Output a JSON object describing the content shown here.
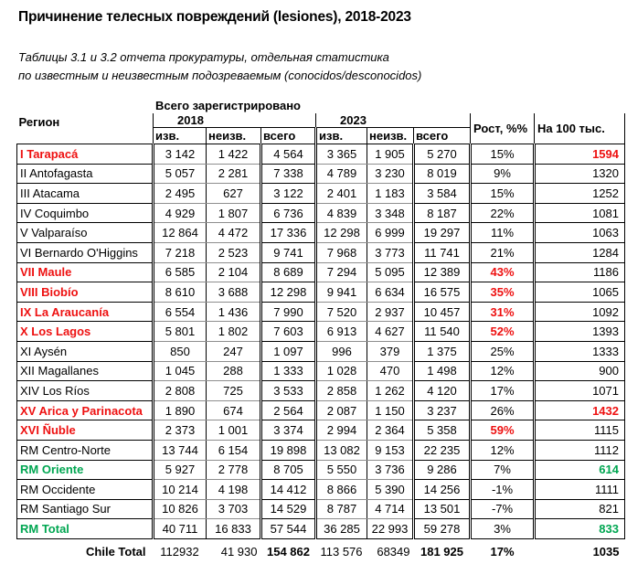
{
  "title": "Причинение телесных повреждений (lesiones), 2018-2023",
  "subtitle": {
    "line1": "Таблицы 3.1 и 3.2 отчета прокуратуры, отдельная статистика",
    "line2": "по известным и неизвестным подозреваемым (conocidos/desconocidos)"
  },
  "colors": {
    "red": "#ee1111",
    "green": "#00a651"
  },
  "table": {
    "super_header": "Всего зарегистрировано",
    "col_region": "Регион",
    "year1": "2018",
    "year2": "2023",
    "sub_izv": "изв.",
    "sub_neizv": "неизв.",
    "sub_vsego": "всего",
    "col_growth": "Рост, %%",
    "col_per100k": "На 100 тыс.",
    "rows": [
      {
        "region": "I Tarapacá",
        "color": "red",
        "values": [
          "3 142",
          "1 422",
          "4 564",
          "3 365",
          "1 905",
          "5 270"
        ],
        "growth": "15%",
        "growth_color": "default",
        "per100k": "1594",
        "per100k_color": "red"
      },
      {
        "region": "II Antofagasta",
        "color": "default",
        "values": [
          "5 057",
          "2 281",
          "7 338",
          "4 789",
          "3 230",
          "8 019"
        ],
        "growth": "9%",
        "growth_color": "default",
        "per100k": "1320",
        "per100k_color": "default"
      },
      {
        "region": "III Atacama",
        "color": "default",
        "values": [
          "2 495",
          "627",
          "3 122",
          "2 401",
          "1 183",
          "3 584"
        ],
        "growth": "15%",
        "growth_color": "default",
        "per100k": "1252",
        "per100k_color": "default"
      },
      {
        "region": "IV Coquimbo",
        "color": "default",
        "values": [
          "4 929",
          "1 807",
          "6 736",
          "4 839",
          "3 348",
          "8 187"
        ],
        "growth": "22%",
        "growth_color": "default",
        "per100k": "1081",
        "per100k_color": "default"
      },
      {
        "region": "V Valparaíso",
        "color": "default",
        "values": [
          "12 864",
          "4 472",
          "17 336",
          "12 298",
          "6 999",
          "19 297"
        ],
        "growth": "11%",
        "growth_color": "default",
        "per100k": "1063",
        "per100k_color": "default"
      },
      {
        "region": "VI Bernardo O'Higgins",
        "color": "default",
        "values": [
          "7 218",
          "2 523",
          "9 741",
          "7 968",
          "3 773",
          "11 741"
        ],
        "growth": "21%",
        "growth_color": "default",
        "per100k": "1284",
        "per100k_color": "default"
      },
      {
        "region": "VII Maule",
        "color": "red",
        "values": [
          "6 585",
          "2 104",
          "8 689",
          "7 294",
          "5 095",
          "12 389"
        ],
        "growth": "43%",
        "growth_color": "red",
        "per100k": "1186",
        "per100k_color": "default"
      },
      {
        "region": "VIII Biobío",
        "color": "red",
        "values": [
          "8 610",
          "3 688",
          "12 298",
          "9 941",
          "6 634",
          "16 575"
        ],
        "growth": "35%",
        "growth_color": "red",
        "per100k": "1065",
        "per100k_color": "default"
      },
      {
        "region": "IX La Araucanía",
        "color": "red",
        "values": [
          "6 554",
          "1 436",
          "7 990",
          "7 520",
          "2 937",
          "10 457"
        ],
        "growth": "31%",
        "growth_color": "red",
        "per100k": "1092",
        "per100k_color": "default"
      },
      {
        "region": "X Los Lagos",
        "color": "red",
        "values": [
          "5 801",
          "1 802",
          "7 603",
          "6 913",
          "4 627",
          "11 540"
        ],
        "growth": "52%",
        "growth_color": "red",
        "per100k": "1393",
        "per100k_color": "default"
      },
      {
        "region": "XI Aysén",
        "color": "default",
        "values": [
          "850",
          "247",
          "1 097",
          "996",
          "379",
          "1 375"
        ],
        "growth": "25%",
        "growth_color": "default",
        "per100k": "1333",
        "per100k_color": "default"
      },
      {
        "region": "XII Magallanes",
        "color": "default",
        "values": [
          "1 045",
          "288",
          "1 333",
          "1 028",
          "470",
          "1 498"
        ],
        "growth": "12%",
        "growth_color": "default",
        "per100k": "900",
        "per100k_color": "default"
      },
      {
        "region": "XIV Los Ríos",
        "color": "default",
        "values": [
          "2 808",
          "725",
          "3 533",
          "2 858",
          "1 262",
          "4 120"
        ],
        "growth": "17%",
        "growth_color": "default",
        "per100k": "1071",
        "per100k_color": "default"
      },
      {
        "region": "XV Arica y Parinacota",
        "color": "red",
        "values": [
          "1 890",
          "674",
          "2 564",
          "2 087",
          "1 150",
          "3 237"
        ],
        "growth": "26%",
        "growth_color": "default",
        "per100k": "1432",
        "per100k_color": "red"
      },
      {
        "region": "XVI Ñuble",
        "color": "red",
        "values": [
          "2 373",
          "1 001",
          "3 374",
          "2 994",
          "2 364",
          "5 358"
        ],
        "growth": "59%",
        "growth_color": "red",
        "per100k": "1115",
        "per100k_color": "default"
      },
      {
        "region": "RM Centro-Norte",
        "color": "default",
        "values": [
          "13 744",
          "6 154",
          "19 898",
          "13 082",
          "9 153",
          "22 235"
        ],
        "growth": "12%",
        "growth_color": "default",
        "per100k": "1112",
        "per100k_color": "default"
      },
      {
        "region": "RM Oriente",
        "color": "green",
        "values": [
          "5 927",
          "2 778",
          "8 705",
          "5 550",
          "3 736",
          "9 286"
        ],
        "growth": "7%",
        "growth_color": "default",
        "per100k": "614",
        "per100k_color": "green"
      },
      {
        "region": "RM Occidente",
        "color": "default",
        "values": [
          "10 214",
          "4 198",
          "14 412",
          "8 866",
          "5 390",
          "14 256"
        ],
        "growth": "-1%",
        "growth_color": "default",
        "per100k": "1111",
        "per100k_color": "default"
      },
      {
        "region": "RM Santiago Sur",
        "color": "default",
        "values": [
          "10 826",
          "3 703",
          "14 529",
          "8 787",
          "4 714",
          "13 501"
        ],
        "growth": "-7%",
        "growth_color": "default",
        "per100k": "821",
        "per100k_color": "default"
      },
      {
        "region": "RM Total",
        "color": "green",
        "values": [
          "40 711",
          "16 833",
          "57 544",
          "36 285",
          "22 993",
          "59 278"
        ],
        "growth": "3%",
        "growth_color": "default",
        "per100k": "833",
        "per100k_color": "green"
      }
    ],
    "total": {
      "label": "Chile Total",
      "values": [
        "112932",
        "41 930",
        "154 862",
        "113 576",
        "68349",
        "181 925"
      ],
      "growth": "17%",
      "per100k": "1035"
    }
  }
}
